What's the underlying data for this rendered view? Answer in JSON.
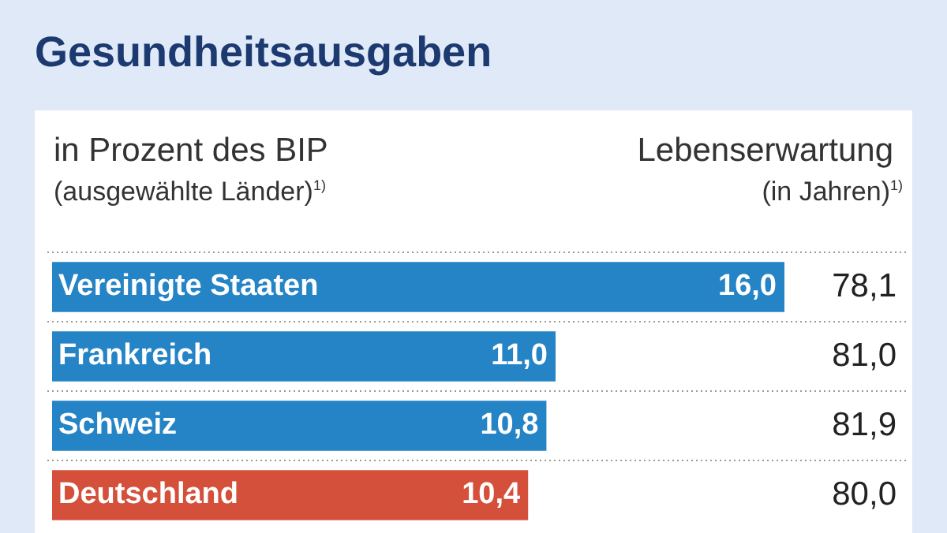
{
  "chart_data": {
    "type": "bar",
    "orientation": "horizontal",
    "title": "Gesundheitsausgaben",
    "subtitle": "in Prozent des BIP",
    "categories": [
      "Vereinigte Staaten",
      "Frankreich",
      "Schweiz",
      "Deutschland"
    ],
    "values": [
      16.0,
      11.0,
      10.8,
      10.4
    ],
    "value_labels": [
      "16,0",
      "11,0",
      "10,8",
      "10,4"
    ],
    "colors": [
      "#2584c6",
      "#2584c6",
      "#2584c6",
      "#d5503a"
    ],
    "xlim": [
      0,
      16
    ],
    "tick_labels": false,
    "legend": false,
    "annotations": [
      "(ausgewählte Länder)$^{1)}$",
      "Lebenserwartung",
      "(in Jahren)$^{1)}$",
      "78,1",
      "81,0",
      "81,9",
      "80,0"
    ]
  }
}
